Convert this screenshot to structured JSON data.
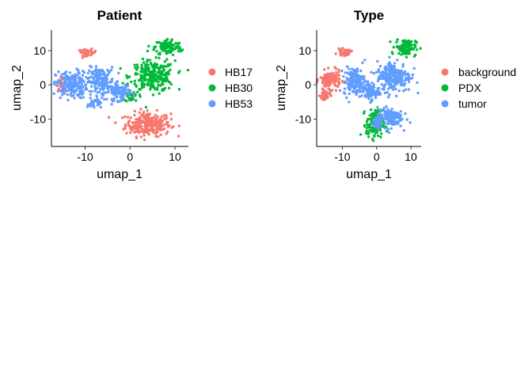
{
  "colors": {
    "red": "#F8766D",
    "green": "#00BA38",
    "blue": "#619CFF"
  },
  "chart_data": [
    {
      "type": "scatter",
      "title": "Patient",
      "xlabel": "umap_1",
      "ylabel": "umap_2",
      "xlim": [
        -17.5,
        13
      ],
      "ylim": [
        -18,
        16
      ],
      "x_ticks": [
        -10,
        0,
        10
      ],
      "y_ticks": [
        10,
        0,
        -10
      ],
      "x_tick_labels": [
        "-10",
        "0",
        "10"
      ],
      "y_tick_labels": [
        "10",
        "0",
        "-10"
      ],
      "legend_position": "right",
      "series": [
        {
          "name": "HB17",
          "color": "#F8766D",
          "clusters": [
            {
              "cx": 4,
              "cy": -11.5,
              "rx": 5,
              "ry": 3.5,
              "n": 260
            },
            {
              "cx": -9.5,
              "cy": 9.5,
              "rx": 2,
              "ry": 0.9,
              "n": 40
            },
            {
              "cx": -15.5,
              "cy": 0,
              "rx": 0.8,
              "ry": 2,
              "n": 25
            }
          ]
        },
        {
          "name": "HB30",
          "color": "#00BA38",
          "clusters": [
            {
              "cx": 5,
              "cy": 2.5,
              "rx": 5,
              "ry": 4.5,
              "n": 260
            },
            {
              "cx": 8.5,
              "cy": 11,
              "rx": 3,
              "ry": 2.5,
              "n": 110
            },
            {
              "cx": 0.5,
              "cy": -3.5,
              "rx": 1.5,
              "ry": 1.5,
              "n": 25
            }
          ]
        },
        {
          "name": "HB53",
          "color": "#619CFF",
          "clusters": [
            {
              "cx": -13,
              "cy": 0,
              "rx": 3.5,
              "ry": 4,
              "n": 200
            },
            {
              "cx": -6.5,
              "cy": 1,
              "rx": 3,
              "ry": 4,
              "n": 160
            },
            {
              "cx": -2.5,
              "cy": -2,
              "rx": 2.5,
              "ry": 2.5,
              "n": 90
            },
            {
              "cx": -8,
              "cy": -5.5,
              "rx": 1.5,
              "ry": 1.5,
              "n": 30
            }
          ]
        }
      ]
    },
    {
      "type": "scatter",
      "title": "Type",
      "xlabel": "umap_1",
      "ylabel": "umap_2",
      "xlim": [
        -17.5,
        13
      ],
      "ylim": [
        -18,
        16
      ],
      "x_ticks": [
        -10,
        0,
        10
      ],
      "y_ticks": [
        10,
        0,
        -10
      ],
      "x_tick_labels": [
        "-10",
        "0",
        "10"
      ],
      "y_tick_labels": [
        "10",
        "0",
        "-10"
      ],
      "legend_position": "right",
      "series": [
        {
          "name": "background",
          "color": "#F8766D",
          "clusters": [
            {
              "cx": -13.5,
              "cy": 1.5,
              "rx": 3,
              "ry": 2.5,
              "n": 130
            },
            {
              "cx": -15,
              "cy": -3,
              "rx": 1.5,
              "ry": 2,
              "n": 40
            },
            {
              "cx": -9.5,
              "cy": 9.5,
              "rx": 2,
              "ry": 0.9,
              "n": 35
            }
          ]
        },
        {
          "name": "PDX",
          "color": "#00BA38",
          "clusters": [
            {
              "cx": 8.5,
              "cy": 11,
              "rx": 3,
              "ry": 2.5,
              "n": 110
            },
            {
              "cx": -0.5,
              "cy": -11.5,
              "rx": 2.5,
              "ry": 4,
              "n": 150
            }
          ]
        },
        {
          "name": "tumor",
          "color": "#619CFF",
          "clusters": [
            {
              "cx": 5,
              "cy": 2.5,
              "rx": 5,
              "ry": 4.5,
              "n": 230
            },
            {
              "cx": -6.5,
              "cy": 1,
              "rx": 3,
              "ry": 4,
              "n": 150
            },
            {
              "cx": -2,
              "cy": -2,
              "rx": 2.5,
              "ry": 2.5,
              "n": 90
            },
            {
              "cx": 4,
              "cy": -9.5,
              "rx": 3.5,
              "ry": 3,
              "n": 120
            },
            {
              "cx": 0,
              "cy": -11,
              "rx": 1.5,
              "ry": 2.5,
              "n": 40
            }
          ]
        }
      ]
    }
  ]
}
